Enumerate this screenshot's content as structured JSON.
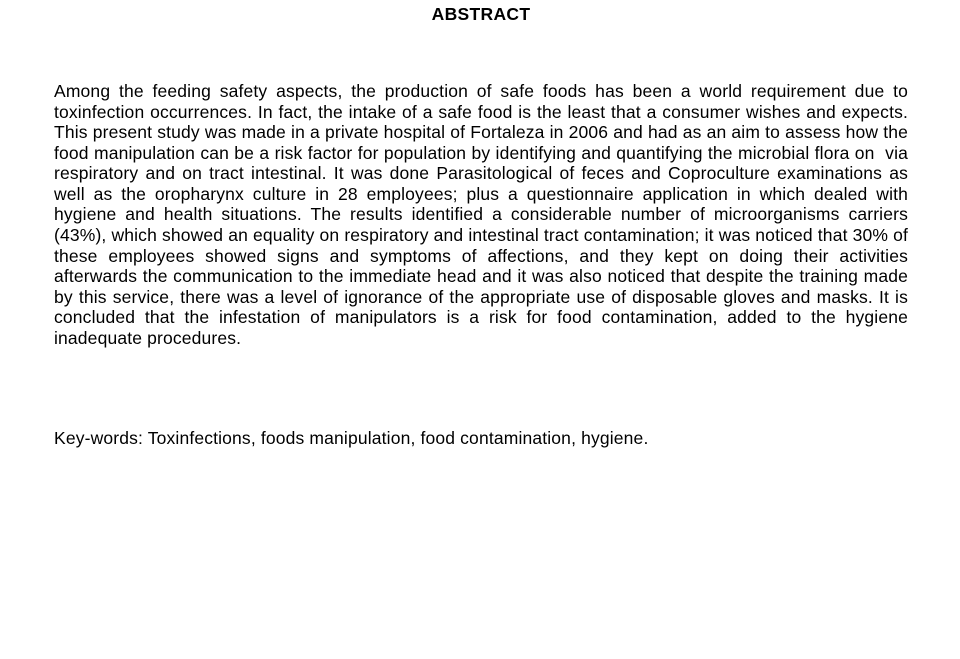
{
  "title": "ABSTRACT",
  "body": "Among the feeding safety aspects, the production of safe foods has been a world requirement due to toxinfection occurrences. In fact, the intake of a safe food is the least that a consumer wishes and expects. This present study was made in a private hospital of Fortaleza in 2006 and had as an aim to assess how the food manipulation can be a risk factor for population by identifying and quantifying the microbial flora on  via respiratory and on tract intestinal. It was done Parasitological of feces and Coproculture examinations as well as the oropharynx culture in 28 employees; plus a questionnaire application in which dealed with hygiene and health situations. The results identified a considerable number of microorganisms carriers (43%), which showed an equality on respiratory and intestinal tract contamination; it was noticed that 30% of these employees showed signs and symptoms of affections, and they kept on doing their activities afterwards the communication to the immediate head and it was also noticed that despite the training made by this service, there was a level of ignorance of the appropriate use of disposable gloves and masks. It is concluded that the infestation of manipulators is a risk for food contamination, added to the hygiene inadequate procedures.",
  "keywords": "Key-words: Toxinfections, foods manipulation, food contamination, hygiene."
}
